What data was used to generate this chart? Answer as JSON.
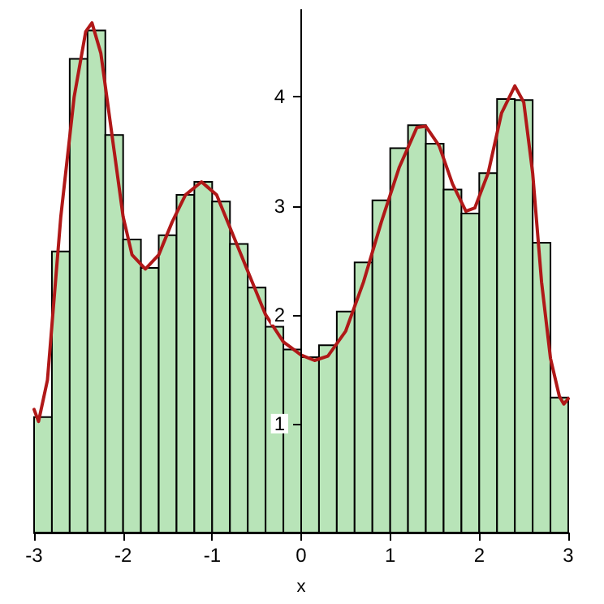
{
  "chart_data": {
    "type": "histogram",
    "xlabel": "x",
    "xlim": [
      -3,
      3
    ],
    "xticks": [
      -3,
      -2,
      -1,
      0,
      1,
      2,
      3
    ],
    "ylim": [
      0,
      4.8
    ],
    "yticks": [
      1,
      2,
      3,
      4
    ],
    "series": [
      {
        "color": "#b8e4b8",
        "bins": [
          -3,
          -2.8,
          -2.6,
          -2.4,
          -2.2,
          -2,
          -1.8,
          -1.6,
          -1.4,
          -1.2,
          -1,
          -0.8,
          -0.6,
          -0.4,
          -0.2,
          0,
          0.2,
          0.4,
          0.6,
          0.8,
          1,
          1.2,
          1.4,
          1.6,
          1.8,
          2,
          2.2,
          2.4,
          2.6,
          2.8,
          3
        ],
        "values": [
          1.06,
          2.58,
          4.35,
          4.61,
          3.65,
          2.69,
          2.43,
          2.73,
          3.1,
          3.22,
          3.04,
          2.65,
          2.25,
          1.89,
          1.68,
          1.61,
          1.72,
          2.03,
          2.48,
          3.05,
          3.53,
          3.74,
          3.57,
          3.15,
          2.93,
          3.3,
          3.98,
          3.97,
          2.66,
          1.24
        ]
      },
      {
        "type": "line",
        "color": "#b01818",
        "x": [
          -3,
          -2.95,
          -2.85,
          -2.7,
          -2.55,
          -2.42,
          -2.35,
          -2.25,
          -2.1,
          -2,
          -1.9,
          -1.75,
          -1.6,
          -1.45,
          -1.3,
          -1.12,
          -0.95,
          -0.8,
          -0.6,
          -0.4,
          -0.2,
          0,
          0.15,
          0.3,
          0.5,
          0.7,
          0.9,
          1.1,
          1.3,
          1.4,
          1.55,
          1.7,
          1.85,
          1.95,
          2.1,
          2.25,
          2.4,
          2.5,
          2.6,
          2.7,
          2.8,
          2.9,
          2.95,
          3
        ],
        "values": [
          1.13,
          1.02,
          1.4,
          2.9,
          4.0,
          4.6,
          4.68,
          4.4,
          3.5,
          2.9,
          2.55,
          2.42,
          2.55,
          2.85,
          3.1,
          3.22,
          3.1,
          2.8,
          2.4,
          2.0,
          1.75,
          1.63,
          1.58,
          1.62,
          1.85,
          2.3,
          2.85,
          3.35,
          3.72,
          3.73,
          3.55,
          3.2,
          2.95,
          2.98,
          3.3,
          3.85,
          4.1,
          3.95,
          3.3,
          2.3,
          1.6,
          1.25,
          1.18,
          1.23
        ]
      }
    ]
  }
}
